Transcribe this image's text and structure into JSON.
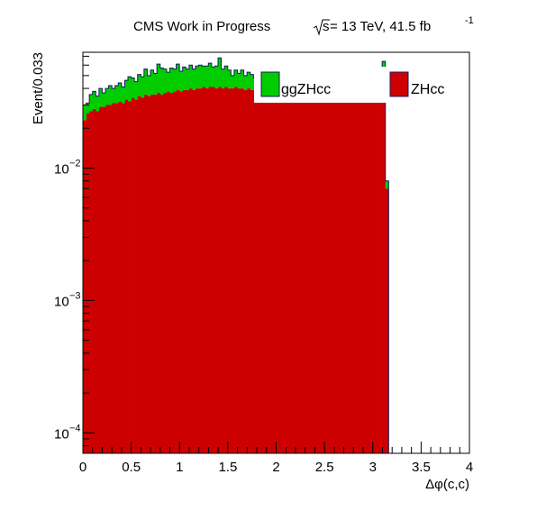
{
  "chart_data": {
    "type": "bar",
    "stacked": true,
    "log_y": true,
    "title": "CMS Work in Progress",
    "lumi_prefix": "s",
    "lumi_main": " = 13 TeV, 41.5 fb",
    "lumi_sup": "-1",
    "xlabel": "Δφ(c,c)",
    "ylabel": "Event/0.033",
    "xlim": [
      0,
      4
    ],
    "ylim": [
      7e-05,
      0.075
    ],
    "bin_width": 0.0333,
    "x_ticks": [
      {
        "v": 0,
        "label": "0"
      },
      {
        "v": 0.5,
        "label": "0.5"
      },
      {
        "v": 1,
        "label": "1"
      },
      {
        "v": 1.5,
        "label": "1.5"
      },
      {
        "v": 2,
        "label": "2"
      },
      {
        "v": 2.5,
        "label": "2.5"
      },
      {
        "v": 3,
        "label": "3"
      },
      {
        "v": 3.5,
        "label": "3.5"
      },
      {
        "v": 4,
        "label": "4"
      }
    ],
    "y_ticks": [
      {
        "v": 0.0001,
        "base": "10",
        "exp": "−4"
      },
      {
        "v": 0.001,
        "base": "10",
        "exp": "−3"
      },
      {
        "v": 0.01,
        "base": "10",
        "exp": "−2"
      }
    ],
    "legend": [
      {
        "name": "ggZHcc",
        "color": "#00cc00"
      },
      {
        "name": "ZHcc",
        "color": "#cc0000"
      }
    ],
    "series": [
      {
        "name": "ZHcc",
        "color": "#cc0000",
        "values": [
          0.023,
          0.026,
          0.027,
          0.028,
          0.027,
          0.029,
          0.029,
          0.03,
          0.03,
          0.031,
          0.031,
          0.032,
          0.031,
          0.033,
          0.032,
          0.034,
          0.033,
          0.035,
          0.034,
          0.036,
          0.035,
          0.036,
          0.036,
          0.037,
          0.036,
          0.037,
          0.038,
          0.037,
          0.038,
          0.039,
          0.038,
          0.039,
          0.039,
          0.04,
          0.039,
          0.04,
          0.04,
          0.041,
          0.04,
          0.041,
          0.041,
          0.04,
          0.041,
          0.04,
          0.041,
          0.04,
          0.04,
          0.041,
          0.04,
          0.04,
          0.039,
          0.04,
          0.039,
          0.039,
          0.038,
          0.039,
          0.038,
          0.038,
          0.037,
          0.038,
          0.037,
          0.037,
          0.036,
          0.037,
          0.036,
          0.036,
          0.035,
          0.036,
          0.035,
          0.035,
          0.034,
          0.035,
          0.034,
          0.034,
          0.034,
          0.034,
          0.033,
          0.034,
          0.033,
          0.034,
          0.033,
          0.034,
          0.033,
          0.034,
          0.034,
          0.034,
          0.035,
          0.034,
          0.035,
          0.035,
          0.035,
          0.036,
          0.035,
          0.036,
          0.007
        ]
      },
      {
        "name": "ggZHcc",
        "color": "#00cc00",
        "values": [
          0.007,
          0.005,
          0.009,
          0.01,
          0.008,
          0.011,
          0.008,
          0.01,
          0.012,
          0.009,
          0.011,
          0.012,
          0.01,
          0.013,
          0.017,
          0.014,
          0.012,
          0.016,
          0.015,
          0.02,
          0.015,
          0.019,
          0.016,
          0.024,
          0.021,
          0.019,
          0.015,
          0.02,
          0.018,
          0.022,
          0.016,
          0.019,
          0.017,
          0.02,
          0.017,
          0.019,
          0.02,
          0.018,
          0.019,
          0.021,
          0.017,
          0.019,
          0.027,
          0.016,
          0.018,
          0.015,
          0.01,
          0.014,
          0.012,
          0.015,
          0.011,
          0.013,
          0.012,
          0.009,
          0.011,
          0.008,
          0.012,
          0.01,
          0.006,
          0.012,
          0.007,
          0.006,
          0.008,
          0.005,
          0.009,
          0.007,
          0.006,
          0.008,
          0.005,
          0.007,
          0.006,
          0.008,
          0.005,
          0.003,
          0.006,
          0.007,
          0.005,
          0.006,
          0.004,
          0.005,
          0.006,
          0.004,
          0.006,
          0.004,
          0.005,
          0.005,
          0.004,
          0.005,
          0.004,
          0.005,
          0.004,
          0.005,
          0.004,
          0.028,
          0.001
        ]
      }
    ]
  }
}
